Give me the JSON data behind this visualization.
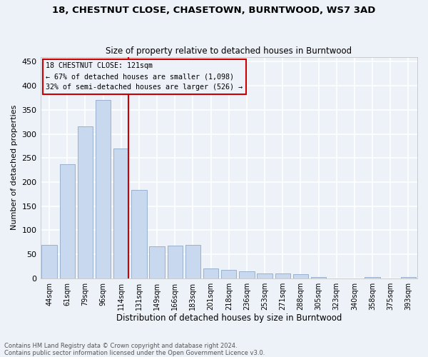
{
  "title1": "18, CHESTNUT CLOSE, CHASETOWN, BURNTWOOD, WS7 3AD",
  "title2": "Size of property relative to detached houses in Burntwood",
  "xlabel": "Distribution of detached houses by size in Burntwood",
  "ylabel": "Number of detached properties",
  "categories": [
    "44sqm",
    "61sqm",
    "79sqm",
    "96sqm",
    "114sqm",
    "131sqm",
    "149sqm",
    "166sqm",
    "183sqm",
    "201sqm",
    "218sqm",
    "236sqm",
    "253sqm",
    "271sqm",
    "288sqm",
    "305sqm",
    "323sqm",
    "340sqm",
    "358sqm",
    "375sqm",
    "393sqm"
  ],
  "values": [
    70,
    237,
    315,
    370,
    270,
    183,
    67,
    68,
    70,
    20,
    17,
    15,
    10,
    10,
    8,
    3,
    0,
    0,
    3,
    0,
    3
  ],
  "bar_color": "#c8d8ee",
  "bar_edge_color": "#9ab0cc",
  "subject_line_color": "#cc0000",
  "annotation_line1": "18 CHESTNUT CLOSE: 121sqm",
  "annotation_line2": "← 67% of detached houses are smaller (1,098)",
  "annotation_line3": "32% of semi-detached houses are larger (526) →",
  "annotation_box_edgecolor": "#cc0000",
  "ylim": [
    0,
    460
  ],
  "yticks": [
    0,
    50,
    100,
    150,
    200,
    250,
    300,
    350,
    400,
    450
  ],
  "footer1": "Contains HM Land Registry data © Crown copyright and database right 2024.",
  "footer2": "Contains public sector information licensed under the Open Government Licence v3.0.",
  "bg_color": "#edf2f9",
  "grid_color": "#ffffff"
}
